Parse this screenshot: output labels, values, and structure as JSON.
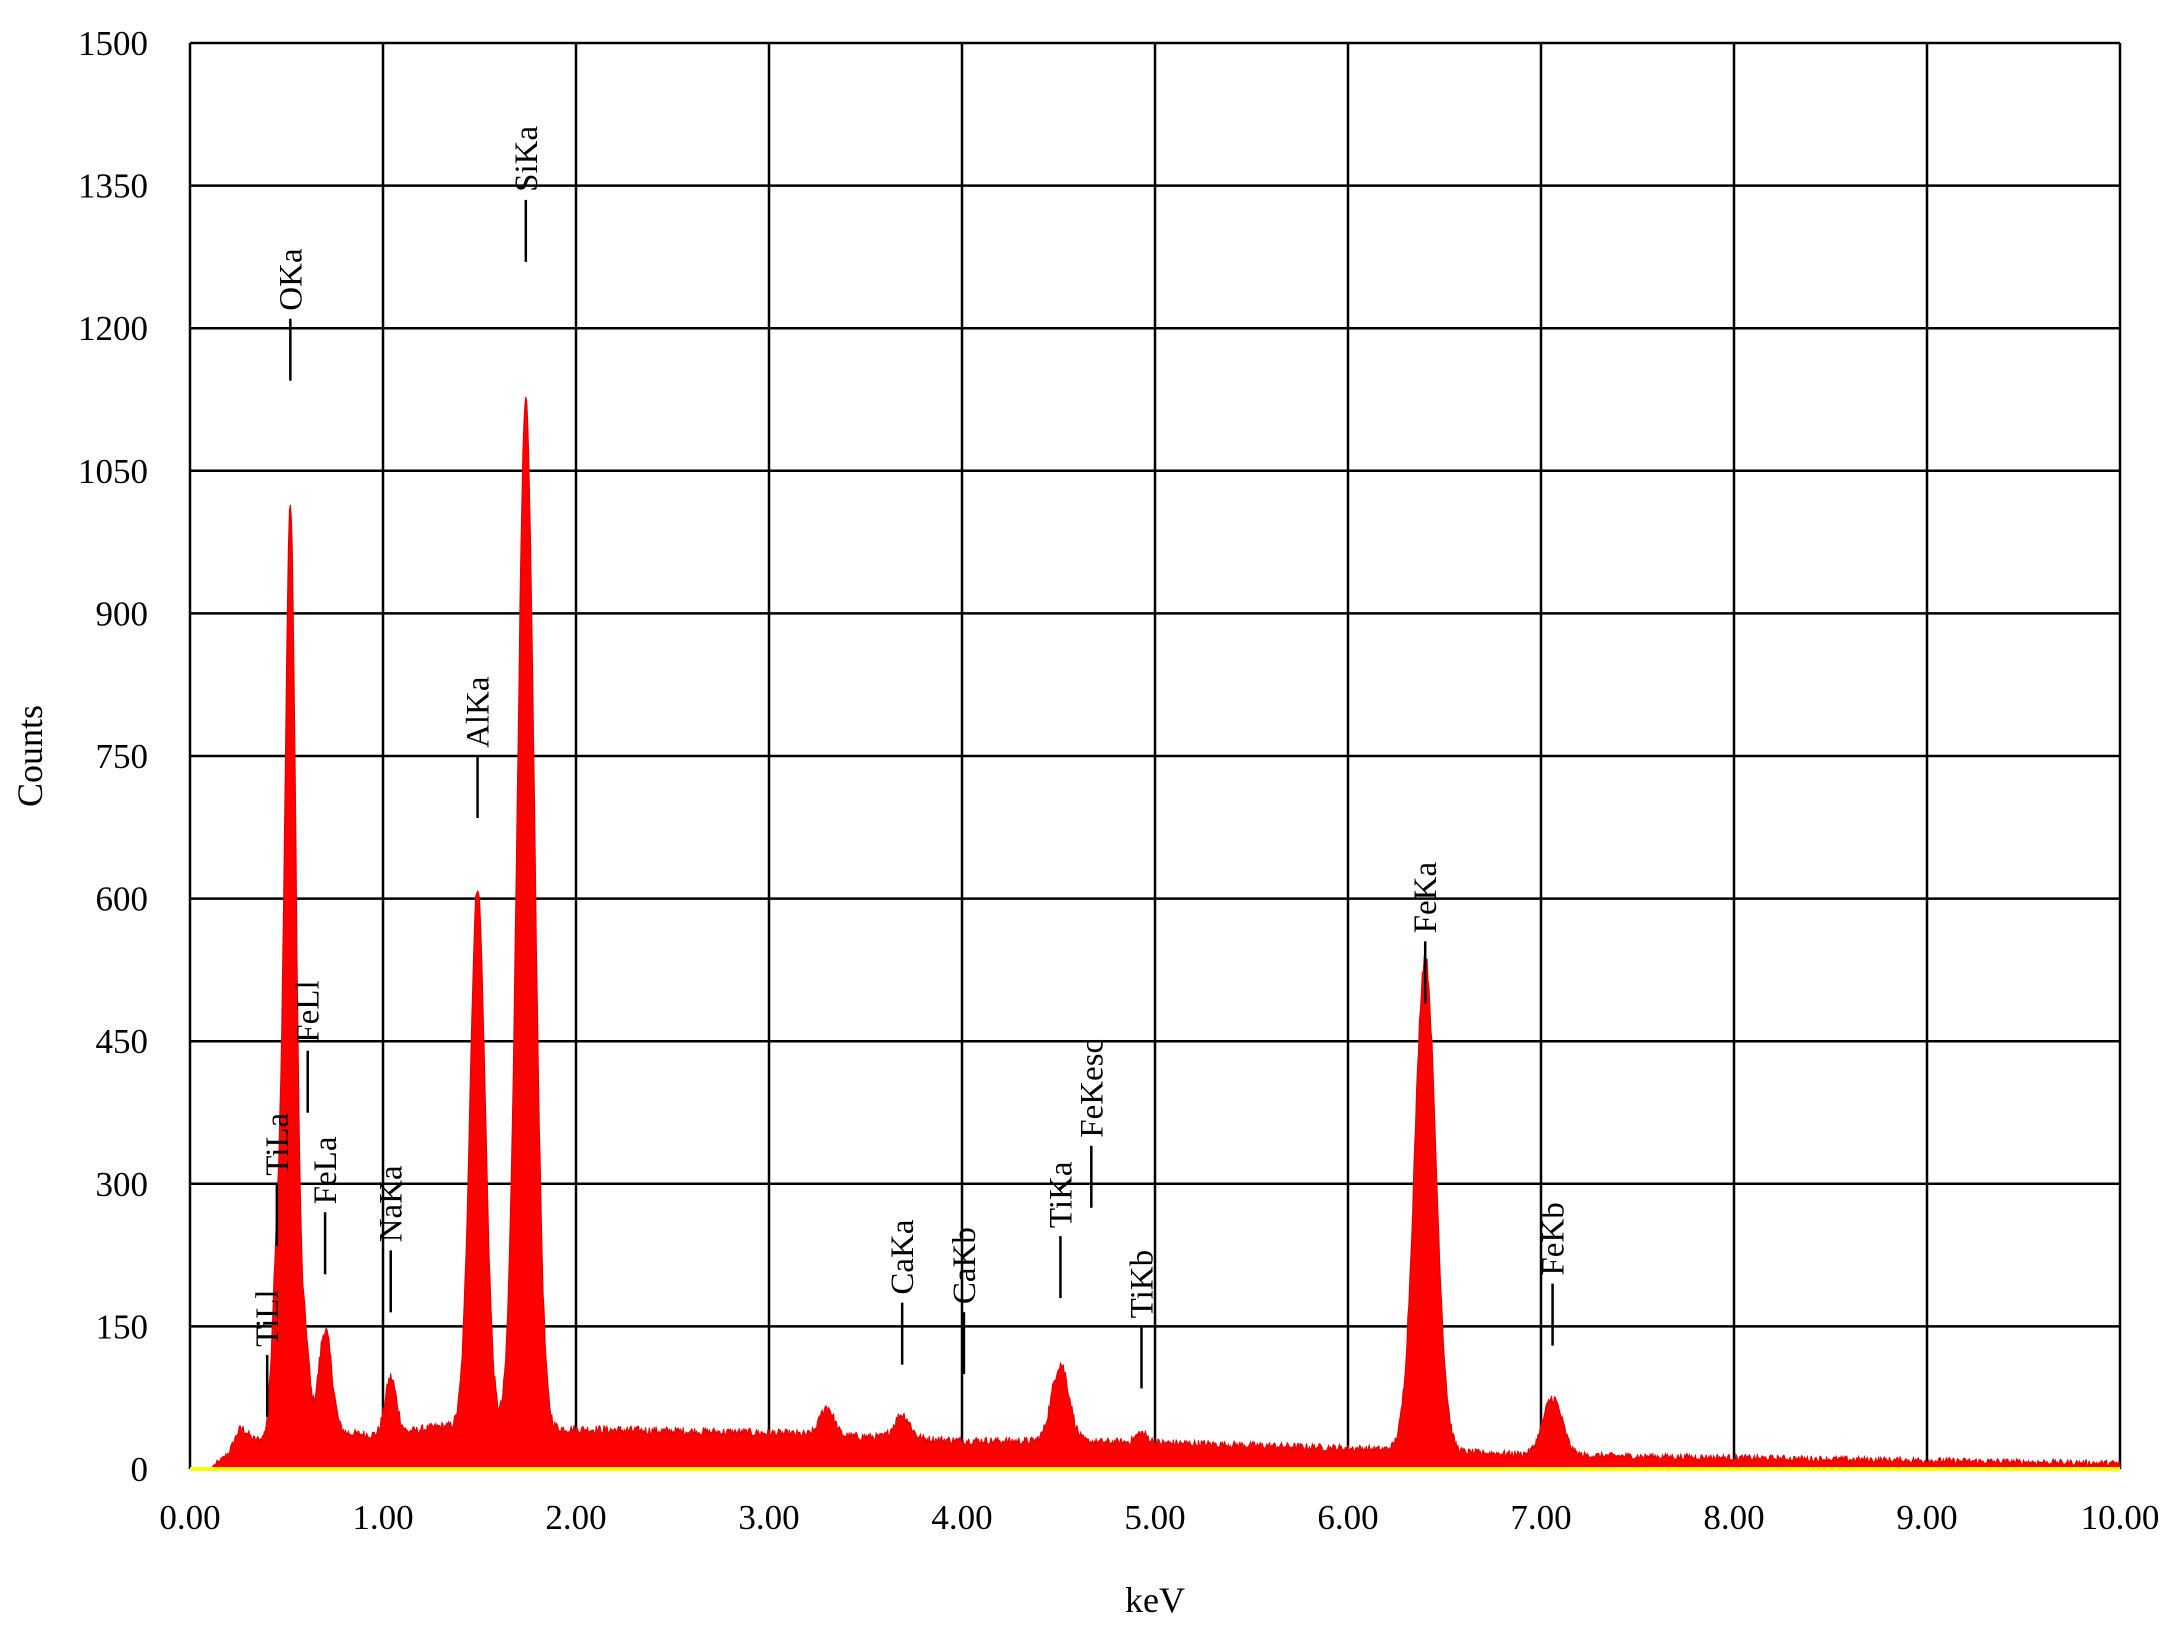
{
  "chart_data": {
    "type": "area",
    "xlabel": "keV",
    "ylabel": "Counts",
    "xlim": [
      0,
      10
    ],
    "ylim": [
      0,
      1500
    ],
    "x_ticks": [
      "0.00",
      "1.00",
      "2.00",
      "3.00",
      "4.00",
      "5.00",
      "6.00",
      "7.00",
      "8.00",
      "9.00",
      "10.00"
    ],
    "y_ticks": [
      "0",
      "150",
      "300",
      "450",
      "600",
      "750",
      "900",
      "1050",
      "1200",
      "1350",
      "1500"
    ],
    "grid": true,
    "colors": {
      "fill": "#ff0000",
      "baseline": "#ffff00",
      "grid": "#000000"
    },
    "spectrum": {
      "background": [
        [
          0.1,
          0
        ],
        [
          0.2,
          15
        ],
        [
          0.3,
          30
        ],
        [
          0.8,
          38
        ],
        [
          1.0,
          35
        ],
        [
          1.3,
          45
        ],
        [
          2.0,
          42
        ],
        [
          3.0,
          38
        ],
        [
          4.0,
          30
        ],
        [
          5.0,
          28
        ],
        [
          6.0,
          22
        ],
        [
          7.0,
          15
        ],
        [
          8.0,
          12
        ],
        [
          9.0,
          9
        ],
        [
          10.0,
          6
        ]
      ],
      "peaks": [
        {
          "center": 0.26,
          "height": 18,
          "width": 0.03
        },
        {
          "center": 0.45,
          "height": 180,
          "width": 0.025
        },
        {
          "center": 0.52,
          "height": 980,
          "width": 0.03
        },
        {
          "center": 0.6,
          "height": 90,
          "width": 0.02
        },
        {
          "center": 0.7,
          "height": 110,
          "width": 0.035
        },
        {
          "center": 1.04,
          "height": 60,
          "width": 0.03
        },
        {
          "center": 1.49,
          "height": 570,
          "width": 0.04
        },
        {
          "center": 1.74,
          "height": 1080,
          "width": 0.045
        },
        {
          "center": 3.3,
          "height": 30,
          "width": 0.035
        },
        {
          "center": 3.69,
          "height": 25,
          "width": 0.04
        },
        {
          "center": 4.51,
          "height": 82,
          "width": 0.045
        },
        {
          "center": 4.93,
          "height": 10,
          "width": 0.03
        },
        {
          "center": 6.4,
          "height": 520,
          "width": 0.055
        },
        {
          "center": 7.06,
          "height": 60,
          "width": 0.05
        }
      ]
    },
    "peak_labels": [
      {
        "label": "TiLl",
        "x": 0.4,
        "y": 120
      },
      {
        "label": "TiLa",
        "x": 0.45,
        "y": 300
      },
      {
        "label": "FeLl",
        "x": 0.61,
        "y": 440
      },
      {
        "label": "FeLa",
        "x": 0.7,
        "y": 270
      },
      {
        "label": "OKa",
        "x": 0.52,
        "y": 1210
      },
      {
        "label": "NaKa",
        "x": 1.04,
        "y": 230
      },
      {
        "label": "AlKa",
        "x": 1.49,
        "y": 750
      },
      {
        "label": "SiKa",
        "x": 1.74,
        "y": 1335
      },
      {
        "label": "CaKa",
        "x": 3.69,
        "y": 175
      },
      {
        "label": "CaKb",
        "x": 4.01,
        "y": 165
      },
      {
        "label": "TiKa",
        "x": 4.51,
        "y": 245
      },
      {
        "label": "FeKesc",
        "x": 4.67,
        "y": 340
      },
      {
        "label": "TiKb",
        "x": 4.93,
        "y": 150
      },
      {
        "label": "FeKa",
        "x": 6.4,
        "y": 555
      },
      {
        "label": "FeKb",
        "x": 7.06,
        "y": 195
      }
    ]
  }
}
